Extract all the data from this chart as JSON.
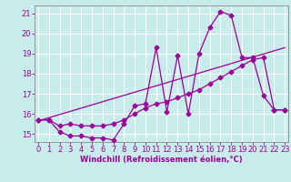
{
  "title": "",
  "xlabel": "Windchill (Refroidissement éolien,°C)",
  "bg_color": "#c8ecec",
  "line_color": "#990099",
  "grid_color": "#ffffff",
  "x_ticks": [
    0,
    1,
    2,
    3,
    4,
    5,
    6,
    7,
    8,
    9,
    10,
    11,
    12,
    13,
    14,
    15,
    16,
    17,
    18,
    19,
    20,
    21,
    22,
    23
  ],
  "y_ticks": [
    15,
    16,
    17,
    18,
    19,
    20,
    21
  ],
  "xlim": [
    -0.3,
    23.3
  ],
  "ylim": [
    14.6,
    21.4
  ],
  "series1_x": [
    0,
    1,
    2,
    3,
    4,
    5,
    6,
    7,
    8,
    9,
    10,
    11,
    12,
    13,
    14,
    15,
    16,
    17,
    18,
    19,
    20,
    21,
    22,
    23
  ],
  "series1_y": [
    15.7,
    15.7,
    15.1,
    14.9,
    14.9,
    14.8,
    14.8,
    14.7,
    15.5,
    16.4,
    16.5,
    19.3,
    16.1,
    18.9,
    16.0,
    19.0,
    20.3,
    21.1,
    20.9,
    18.8,
    18.8,
    16.9,
    16.2,
    16.2
  ],
  "series2_x": [
    0,
    1,
    2,
    3,
    4,
    5,
    6,
    7,
    8,
    9,
    10,
    11,
    12,
    13,
    14,
    15,
    16,
    17,
    18,
    19,
    20,
    21,
    22,
    23
  ],
  "series2_y": [
    15.7,
    15.7,
    15.4,
    15.5,
    15.4,
    15.4,
    15.4,
    15.5,
    15.7,
    16.0,
    16.3,
    16.5,
    16.6,
    16.8,
    17.0,
    17.2,
    17.5,
    17.8,
    18.1,
    18.4,
    18.7,
    18.8,
    16.2,
    16.2
  ],
  "series3_x": [
    0,
    23
  ],
  "series3_y": [
    15.65,
    19.3
  ],
  "marker_size": 2.5,
  "linewidth": 0.9,
  "xlabel_fontsize": 6,
  "tick_fontsize": 6,
  "spine_color": "#888888"
}
